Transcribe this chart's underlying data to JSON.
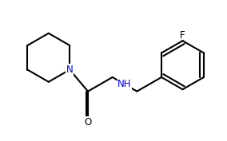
{
  "bg_color": "#ffffff",
  "line_color": "#000000",
  "label_color_N": "#0000cd",
  "label_color_O": "#000000",
  "label_color_F": "#000000",
  "line_width": 1.5,
  "font_size_atoms": 8.5,
  "fig_width": 2.84,
  "fig_height": 1.77,
  "dpi": 100,
  "xlim": [
    0.0,
    5.6
  ],
  "ylim": [
    0.0,
    3.54
  ]
}
